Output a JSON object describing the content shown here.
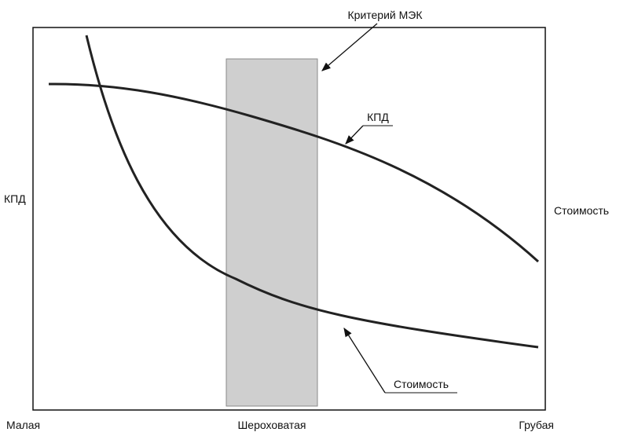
{
  "labels": {
    "criterion": "Критерий МЭК",
    "efficiency_curve": "КПД",
    "efficiency_axis": "КПД",
    "cost_axis": "Стоимость",
    "cost_curve": "Стоимость"
  },
  "x_axis": {
    "left": "Малая",
    "middle": "Шероховатая",
    "right": "Грубая"
  }
}
